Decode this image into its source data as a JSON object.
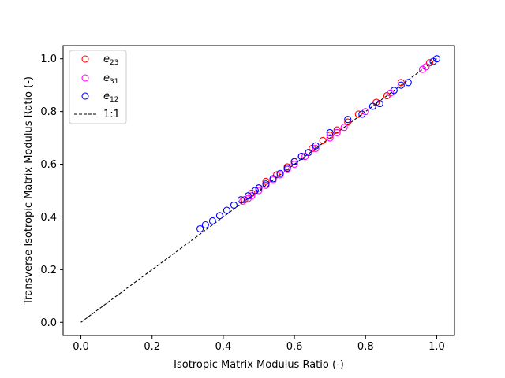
{
  "chart_data": {
    "type": "scatter",
    "title": "",
    "xlabel": "Isotropic Matrix Modulus Ratio (-)",
    "ylabel": "Transverse Isotropic Matrix Modulus Ratio (-)",
    "xlim": [
      -0.05,
      1.05
    ],
    "ylim": [
      -0.05,
      1.05
    ],
    "xticks": [
      "0.0",
      "0.2",
      "0.4",
      "0.6",
      "0.8",
      "1.0"
    ],
    "yticks": [
      "0.0",
      "0.2",
      "0.4",
      "0.6",
      "0.8",
      "1.0"
    ],
    "grid": false,
    "legend_position": "top-left",
    "series": [
      {
        "name": "e23",
        "label_base": "e",
        "label_sub": "23",
        "marker": "open-circle",
        "color": "#ff0000",
        "points": [
          [
            0.46,
            0.465
          ],
          [
            0.48,
            0.49
          ],
          [
            0.5,
            0.51
          ],
          [
            0.52,
            0.535
          ],
          [
            0.55,
            0.56
          ],
          [
            0.58,
            0.59
          ],
          [
            0.6,
            0.61
          ],
          [
            0.62,
            0.63
          ],
          [
            0.65,
            0.66
          ],
          [
            0.68,
            0.69
          ],
          [
            0.7,
            0.71
          ],
          [
            0.72,
            0.73
          ],
          [
            0.75,
            0.76
          ],
          [
            0.78,
            0.79
          ],
          [
            0.83,
            0.835
          ],
          [
            0.86,
            0.86
          ],
          [
            0.9,
            0.91
          ],
          [
            0.98,
            0.985
          ]
        ]
      },
      {
        "name": "e31",
        "label_base": "e",
        "label_sub": "31",
        "marker": "open-circle",
        "color": "#ff00ff",
        "points": [
          [
            0.455,
            0.46
          ],
          [
            0.47,
            0.47
          ],
          [
            0.48,
            0.48
          ],
          [
            0.5,
            0.5
          ],
          [
            0.52,
            0.52
          ],
          [
            0.54,
            0.54
          ],
          [
            0.56,
            0.56
          ],
          [
            0.58,
            0.58
          ],
          [
            0.6,
            0.6
          ],
          [
            0.63,
            0.63
          ],
          [
            0.66,
            0.66
          ],
          [
            0.7,
            0.7
          ],
          [
            0.72,
            0.72
          ],
          [
            0.74,
            0.74
          ],
          [
            0.8,
            0.8
          ],
          [
            0.87,
            0.87
          ],
          [
            0.96,
            0.96
          ],
          [
            0.97,
            0.97
          ]
        ]
      },
      {
        "name": "e12",
        "label_base": "e",
        "label_sub": "12",
        "marker": "open-circle",
        "color": "#0000ff",
        "points": [
          [
            0.335,
            0.355
          ],
          [
            0.35,
            0.37
          ],
          [
            0.37,
            0.385
          ],
          [
            0.39,
            0.405
          ],
          [
            0.41,
            0.425
          ],
          [
            0.43,
            0.445
          ],
          [
            0.45,
            0.465
          ],
          [
            0.47,
            0.48
          ],
          [
            0.49,
            0.5
          ],
          [
            0.5,
            0.51
          ],
          [
            0.52,
            0.525
          ],
          [
            0.54,
            0.545
          ],
          [
            0.56,
            0.565
          ],
          [
            0.58,
            0.585
          ],
          [
            0.6,
            0.61
          ],
          [
            0.62,
            0.63
          ],
          [
            0.64,
            0.645
          ],
          [
            0.66,
            0.67
          ],
          [
            0.7,
            0.72
          ],
          [
            0.75,
            0.77
          ],
          [
            0.79,
            0.79
          ],
          [
            0.82,
            0.82
          ],
          [
            0.84,
            0.83
          ],
          [
            0.88,
            0.88
          ],
          [
            0.9,
            0.9
          ],
          [
            0.92,
            0.91
          ],
          [
            0.99,
            0.99
          ],
          [
            1.0,
            1.0
          ]
        ]
      }
    ],
    "reference_line": {
      "name": "1:1",
      "color": "#000000",
      "style": "dashed",
      "x": [
        0.0,
        1.0
      ],
      "y": [
        0.0,
        1.0
      ]
    }
  }
}
